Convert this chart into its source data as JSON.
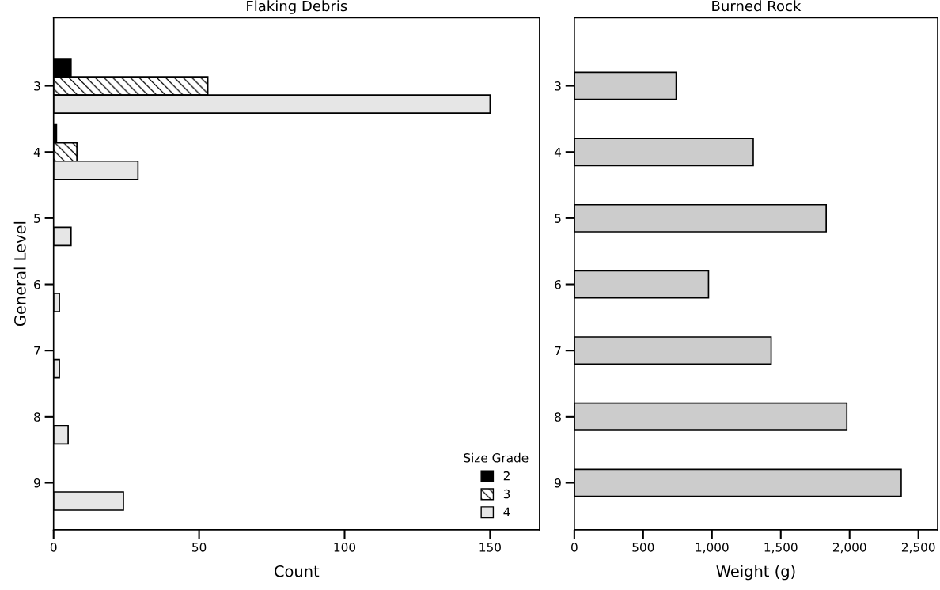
{
  "chart_data": [
    {
      "type": "bar",
      "orientation": "horizontal",
      "title": "Flaking Debris",
      "xlabel": "Count",
      "ylabel": "General Level",
      "categories": [
        "3",
        "4",
        "5",
        "6",
        "7",
        "8",
        "9"
      ],
      "series": [
        {
          "name": "2",
          "color": "#000000",
          "values": [
            6,
            1,
            0,
            0,
            0,
            0,
            0
          ]
        },
        {
          "name": "3",
          "color": "#ffffff",
          "values": [
            53,
            8,
            0,
            0,
            0,
            0,
            0
          ]
        },
        {
          "name": "4",
          "color": "#e6e6e6",
          "values": [
            150,
            29,
            6,
            2,
            2,
            5,
            24
          ]
        }
      ],
      "legend_title": "Size Grade",
      "legend": "bottom right",
      "xlim": [
        0,
        167
      ],
      "xticks": [
        0,
        50,
        100,
        150
      ],
      "grid": false
    },
    {
      "type": "bar",
      "orientation": "horizontal",
      "title": "Burned Rock",
      "xlabel": "Weight (g)",
      "categories": [
        "3",
        "4",
        "5",
        "6",
        "7",
        "8",
        "9"
      ],
      "values": [
        740,
        1300,
        1830,
        975,
        1430,
        1980,
        2375
      ],
      "color": "#cccccc",
      "xlim": [
        0,
        2640
      ],
      "xticks": [
        0,
        {
          "value": 500,
          "label": "500"
        },
        {
          "value": 1000,
          "label": "1,000"
        },
        {
          "value": 1500,
          "label": "1,500"
        },
        {
          "value": 2000,
          "label": "2,000"
        },
        {
          "value": 2500,
          "label": "2,500"
        }
      ],
      "grid": false
    }
  ]
}
